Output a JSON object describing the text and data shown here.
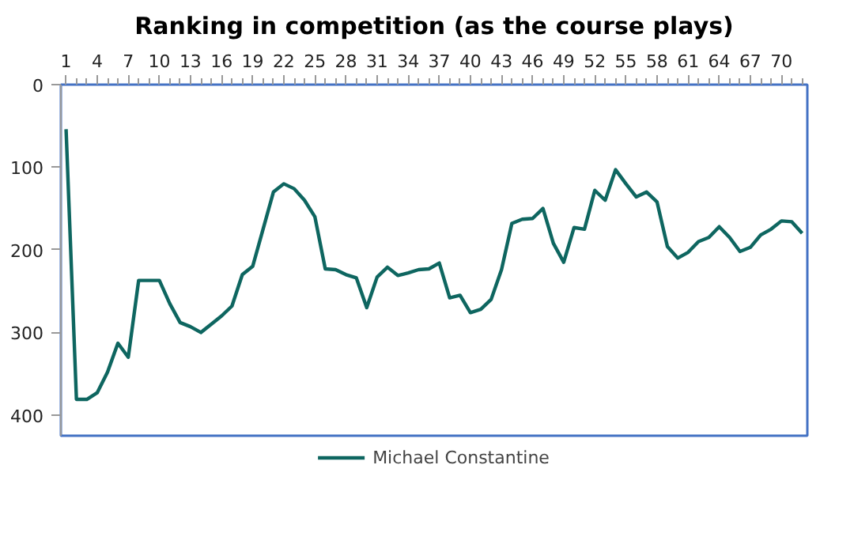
{
  "chart_data": {
    "type": "line",
    "title": "Ranking in competition (as the course plays)",
    "x": [
      1,
      2,
      3,
      4,
      5,
      6,
      7,
      8,
      9,
      10,
      11,
      12,
      13,
      14,
      15,
      16,
      17,
      18,
      19,
      20,
      21,
      22,
      23,
      24,
      25,
      26,
      27,
      28,
      29,
      30,
      31,
      32,
      33,
      34,
      35,
      36,
      37,
      38,
      39,
      40,
      41,
      42,
      43,
      44,
      45,
      46,
      47,
      48,
      49,
      50,
      51,
      52,
      53,
      54,
      55,
      56,
      57,
      58,
      59,
      60,
      61,
      62,
      63,
      64,
      65,
      66,
      67,
      68,
      69,
      70,
      71,
      72
    ],
    "series": [
      {
        "name": "Michael Constantine",
        "color": "#0e6660",
        "values": [
          54,
          381,
          381,
          373,
          348,
          313,
          330,
          237,
          237,
          237,
          265,
          288,
          293,
          300,
          290,
          280,
          268,
          230,
          220,
          175,
          130,
          120,
          126,
          140,
          160,
          223,
          224,
          230,
          234,
          270,
          233,
          221,
          231,
          228,
          224,
          223,
          216,
          258,
          255,
          276,
          272,
          260,
          224,
          168,
          163,
          162,
          150,
          192,
          215,
          173,
          175,
          128,
          140,
          103,
          120,
          136,
          130,
          142,
          196,
          210,
          203,
          190,
          185,
          172,
          185,
          202,
          197,
          182,
          175,
          165,
          166,
          180
        ]
      }
    ],
    "xlim": [
      0.5,
      72.5
    ],
    "xticks": [
      1,
      4,
      7,
      10,
      13,
      16,
      19,
      22,
      25,
      28,
      31,
      34,
      37,
      40,
      43,
      46,
      49,
      52,
      55,
      58,
      61,
      64,
      67,
      70
    ],
    "ylim": [
      425,
      0
    ],
    "yticks": [
      0,
      100,
      200,
      300,
      400
    ],
    "grid": false,
    "legend": "bottom",
    "marker": "none",
    "line_style": "solid"
  }
}
